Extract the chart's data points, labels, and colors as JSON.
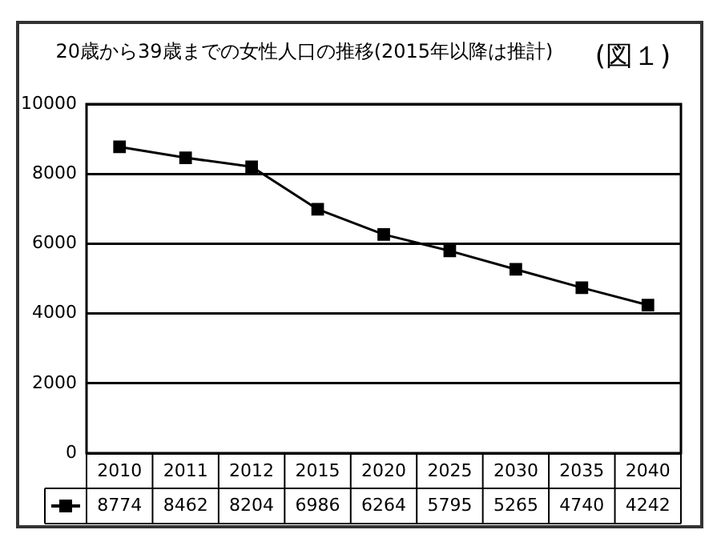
{
  "chart_data": {
    "type": "line",
    "title": "20歳から39歳までの女性人口の推移(2015年以降は推計)",
    "annotations": [
      "(図１)"
    ],
    "categories": [
      "2010",
      "2011",
      "2012",
      "2015",
      "2020",
      "2025",
      "2030",
      "2035",
      "2040"
    ],
    "series": [
      {
        "color": "#000000",
        "values": [
          8774,
          8462,
          8204,
          6986,
          6264,
          5795,
          5265,
          4740,
          4242
        ]
      }
    ],
    "ylim": [
      0,
      10000
    ],
    "yticks": [
      0,
      2000,
      4000,
      6000,
      8000,
      10000
    ],
    "grid": "y",
    "marker": "square",
    "line_style": "solid",
    "legend": false,
    "data_labels": true
  }
}
